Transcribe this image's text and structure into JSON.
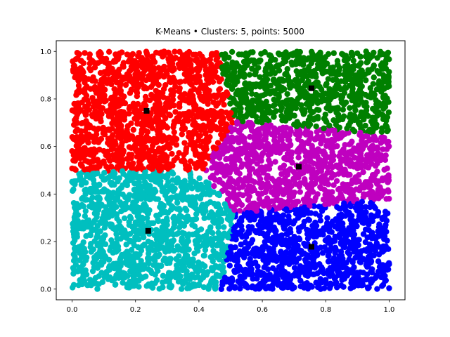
{
  "chart_data": {
    "type": "scatter",
    "title": "K-Means • Clusters: 5, points: 5000",
    "xlabel": "",
    "ylabel": "",
    "xlim": [
      -0.05,
      1.05
    ],
    "ylim": [
      -0.045,
      1.045
    ],
    "x_ticks": [
      0.0,
      0.2,
      0.4,
      0.6,
      0.8,
      1.0
    ],
    "y_ticks": [
      0.0,
      0.2,
      0.4,
      0.6,
      0.8,
      1.0
    ],
    "x_tick_labels": [
      "0.0",
      "0.2",
      "0.4",
      "0.6",
      "0.8",
      "1.0"
    ],
    "y_tick_labels": [
      "0.0",
      "0.2",
      "0.4",
      "0.6",
      "0.8",
      "1.0"
    ],
    "grid": false,
    "legend": "none",
    "total_points": 5000,
    "clusters": [
      {
        "color": "#ff0000",
        "centroid": [
          0.235,
          0.75
        ]
      },
      {
        "color": "#008000",
        "centroid": [
          0.755,
          0.845
        ]
      },
      {
        "color": "#bf00bf",
        "centroid": [
          0.715,
          0.515
        ]
      },
      {
        "color": "#00bfbf",
        "centroid": [
          0.24,
          0.245
        ]
      },
      {
        "color": "#0000ff",
        "centroid": [
          0.755,
          0.178
        ]
      }
    ],
    "centroid_color": "#000000",
    "centroid_marker": "square"
  }
}
